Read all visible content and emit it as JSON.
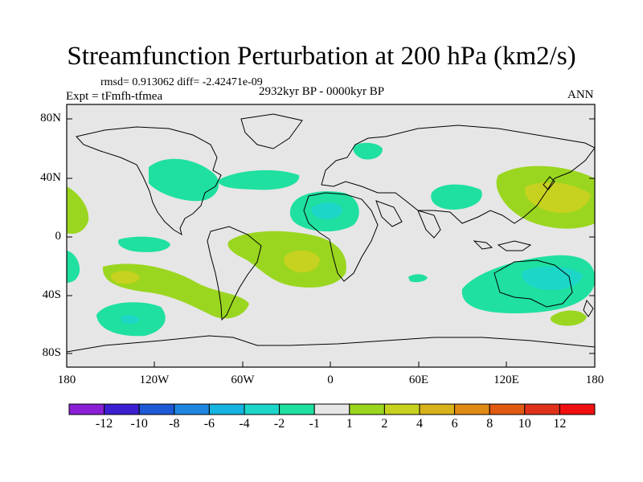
{
  "title": "Streamfunction Perturbation at 200 hPa (km2/s)",
  "stats_line": "rmsd= 0.913062 diff= -2.42471e-09",
  "experiment": "Expt = tFmfh-tfmea",
  "period": "2932kyr BP - 0000kyr BP",
  "season": "ANN",
  "lat_labels": [
    "80N",
    "40N",
    "0",
    "40S",
    "80S"
  ],
  "lon_labels": [
    "180",
    "120W",
    "60W",
    "0",
    "60E",
    "120E",
    "180"
  ],
  "colorbar": {
    "labels": [
      "-12",
      "-10",
      "-8",
      "-6",
      "-4",
      "-2",
      "-1",
      "1",
      "2",
      "4",
      "6",
      "8",
      "10",
      "12"
    ],
    "colors": [
      "#8a1fd6",
      "#3b1fd0",
      "#1f5ad6",
      "#1f86e0",
      "#16b4e0",
      "#1cd6c8",
      "#1fe0a0",
      "#e6e6e6",
      "#9ad61f",
      "#c6d21f",
      "#d8b21a",
      "#e08a16",
      "#e05a12",
      "#e0321a",
      "#f01010"
    ]
  },
  "chart_data": {
    "type": "heatmap",
    "title": "Streamfunction Perturbation at 200 hPa (km2/s)",
    "projection": "cylindrical equidistant",
    "lon_range": [
      -180,
      180
    ],
    "lat_range": [
      -90,
      90
    ],
    "contour_levels": [
      -12,
      -10,
      -8,
      -6,
      -4,
      -2,
      -1,
      1,
      2,
      4,
      6,
      8,
      10,
      12
    ],
    "features": [
      {
        "name": "west-pacific-high",
        "sign": "positive",
        "level": 4,
        "lon": 150,
        "lat": 28
      },
      {
        "name": "east-atlantic-low",
        "sign": "negative",
        "level": -4,
        "lon": -10,
        "lat": 18
      },
      {
        "name": "south-atlantic-high",
        "sign": "positive",
        "level": 4,
        "lon": -18,
        "lat": -18
      },
      {
        "name": "south-pacific-high",
        "sign": "positive",
        "level": 4,
        "lon": -140,
        "lat": -25
      },
      {
        "name": "australia-low",
        "sign": "negative",
        "level": -4,
        "lon": 140,
        "lat": -25
      },
      {
        "name": "southern-ocean-low",
        "sign": "negative",
        "level": -4,
        "lon": -135,
        "lat": -55
      },
      {
        "name": "north-atlantic-low",
        "sign": "negative",
        "level": -2,
        "lon": -40,
        "lat": 40
      },
      {
        "name": "asia-low",
        "sign": "negative",
        "level": -2,
        "lon": 75,
        "lat": 30
      }
    ]
  }
}
